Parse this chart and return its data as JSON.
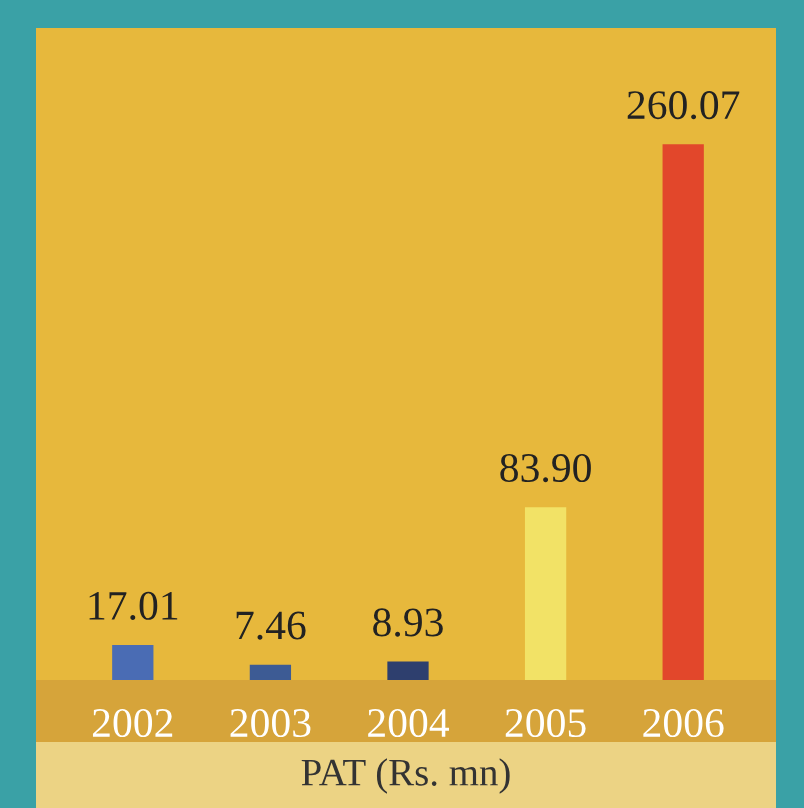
{
  "chart_data": {
    "type": "bar",
    "xlabel": "PAT (Rs. mn)",
    "categories": [
      "2002",
      "2003",
      "2004",
      "2005",
      "2006"
    ],
    "values": [
      17.01,
      7.46,
      8.93,
      83.9,
      260.07
    ],
    "value_labels": [
      "17.01",
      "7.46",
      "8.93",
      "83.90",
      "260.07"
    ],
    "colors": [
      "#4a6cb4",
      "#3d5b94",
      "#2e3f6e",
      "#f2e266",
      "#e2472b"
    ],
    "tick_labels": "x"
  }
}
